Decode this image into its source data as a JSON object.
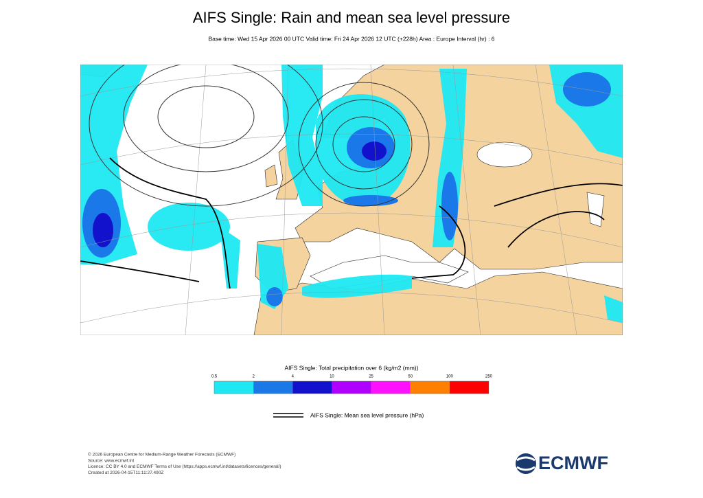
{
  "header": {
    "title": "AIFS Single: Rain and mean sea level pressure",
    "subtitle": "Base time: Wed 15 Apr 2026 00 UTC Valid time: Fri 24 Apr 2026 12 UTC (+228h) Area : Europe Interval (hr) : 6"
  },
  "legend": {
    "title": "AIFS Single: Total precipitation over 6 (kg/m2 (mm))",
    "ticks": [
      0.5,
      2,
      4,
      10,
      25,
      50,
      100,
      250
    ],
    "colors": [
      "#1ee8f2",
      "#1a78e8",
      "#1212cc",
      "#b000ff",
      "#ff10ff",
      "#ff8000",
      "#ff0000"
    ]
  },
  "line_legend": {
    "label": "AIFS Single: Mean sea level pressure (hPa)"
  },
  "footer": {
    "lines": [
      "© 2026 European Centre for Medium-Range Weather Forecasts (ECMWF)",
      "Source: www.ecmwf.int",
      "Licence: CC BY 4.0 and ECMWF Terms of Use (https://apps.ecmwf.int/datasets/licences/general/)",
      "Created at 2026-04-15T11:11:27.490Z"
    ]
  },
  "logo": {
    "text": "ECMWF"
  }
}
